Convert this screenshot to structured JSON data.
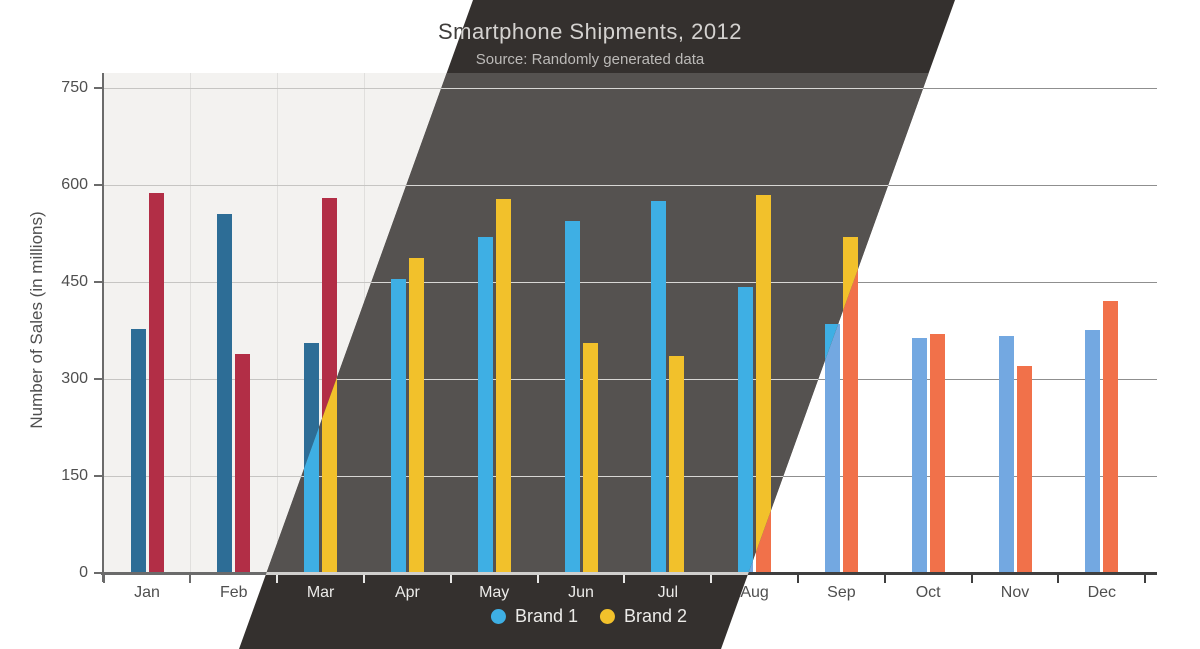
{
  "chart_data": {
    "type": "bar",
    "title": "Smartphone Shipments, 2012",
    "subtitle": "Source: Randomly generated data",
    "ylabel": "Number of Sales (in millions)",
    "categories": [
      "Jan",
      "Feb",
      "Mar",
      "Apr",
      "May",
      "Jun",
      "Jul",
      "Aug",
      "Sep",
      "Oct",
      "Nov",
      "Dec"
    ],
    "series": [
      {
        "name": "Brand 1",
        "values": [
          378,
          555,
          355,
          455,
          520,
          545,
          575,
          442,
          385,
          363,
          367,
          376
        ]
      },
      {
        "name": "Brand 2",
        "values": [
          588,
          338,
          580,
          487,
          578,
          355,
          335,
          585,
          520,
          370,
          320,
          420
        ]
      }
    ],
    "ylim": [
      0,
      750
    ],
    "yticks": [
      0,
      150,
      300,
      450,
      600,
      750
    ],
    "grid": "horizontal",
    "legend_position": "bottom"
  },
  "themes": {
    "left_light": {
      "outer_bg": "#FFFFFF",
      "plot_bg": "#F3F2F0",
      "hgrid": "#C6C5C3",
      "vgrid": "#E0DFDD",
      "axis": "#6B6B6B",
      "tick": "#6B6B6B",
      "text": "#4F4F4F",
      "title_text": "#3F3D3B",
      "subtitle_text": "#6A6A6A",
      "brand1": "#2D6D96",
      "brand2": "#B22E46"
    },
    "middle_dark": {
      "outer_bg": "#34302E",
      "plot_bg": "#555250",
      "hgrid": "#D8D7D5",
      "vgrid": "",
      "axis": "#D0CFCD",
      "tick": "#E8E7E5",
      "text": "#ECEBE9",
      "title_text": "#D4D2D0",
      "subtitle_text": "#BCBAB8",
      "brand1": "#3EAFE4",
      "brand2": "#F2C12B"
    },
    "right_white": {
      "outer_bg": "#FFFFFF",
      "plot_bg": "#FFFFFF",
      "hgrid": "#8F8F8F",
      "vgrid": "",
      "axis": "#3F3F3F",
      "tick": "#3F3F3F",
      "text": "#4F4F4F",
      "title_text": "#3F3D3B",
      "subtitle_text": "#6A6A6A",
      "brand1": "#73A8E1",
      "brand2": "#F1714A"
    }
  }
}
